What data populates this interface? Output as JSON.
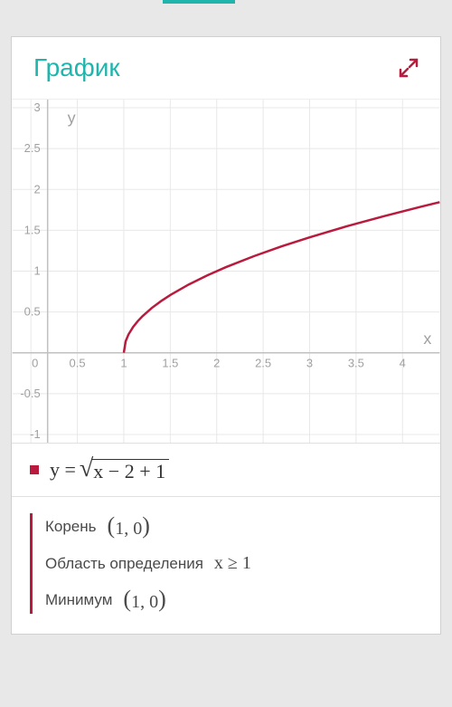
{
  "header": {
    "title": "График"
  },
  "chart": {
    "type": "line",
    "background_color": "#ffffff",
    "grid_color": "#e8e8e8",
    "axis_color": "#c0c0c0",
    "tick_color": "#a0a0a0",
    "curve_color": "#b81b3e",
    "curve_width": 2.5,
    "xlim": [
      -0.2,
      4.4
    ],
    "ylim": [
      -1.1,
      3.1
    ],
    "xticks": [
      0,
      0.5,
      1,
      1.5,
      2,
      2.5,
      3,
      3.5,
      4
    ],
    "yticks": [
      -1,
      -0.5,
      0.5,
      1,
      1.5,
      2,
      2.5,
      3
    ],
    "xlabel": "x",
    "ylabel": "y",
    "y_axis_x": 0.18,
    "curve_points": [
      [
        1.0,
        0.0
      ],
      [
        1.02,
        0.141
      ],
      [
        1.05,
        0.224
      ],
      [
        1.1,
        0.316
      ],
      [
        1.15,
        0.387
      ],
      [
        1.2,
        0.447
      ],
      [
        1.3,
        0.548
      ],
      [
        1.4,
        0.632
      ],
      [
        1.5,
        0.707
      ],
      [
        1.7,
        0.837
      ],
      [
        1.9,
        0.949
      ],
      [
        2.1,
        1.049
      ],
      [
        2.4,
        1.183
      ],
      [
        2.7,
        1.304
      ],
      [
        3.0,
        1.414
      ],
      [
        3.4,
        1.549
      ],
      [
        3.8,
        1.673
      ],
      [
        4.2,
        1.789
      ],
      [
        4.4,
        1.844
      ]
    ]
  },
  "equation": {
    "lhs": "y =",
    "sqrt_arg": "x − 2 + 1",
    "marker_color": "#b81b3e"
  },
  "properties": [
    {
      "label": "Корень",
      "value_type": "tuple",
      "value": "1, 0"
    },
    {
      "label": "Область определения",
      "value_type": "plain",
      "value": "x ≥ 1"
    },
    {
      "label": "Минимум",
      "value_type": "tuple",
      "value": "1, 0"
    }
  ]
}
